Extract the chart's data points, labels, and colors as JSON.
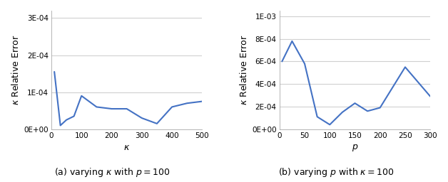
{
  "plot1": {
    "x": [
      10,
      30,
      50,
      75,
      100,
      150,
      200,
      250,
      300,
      350,
      400,
      450,
      500
    ],
    "y": [
      0.000155,
      1e-05,
      2.5e-05,
      3.5e-05,
      9e-05,
      6e-05,
      5.5e-05,
      5.5e-05,
      3e-05,
      1.5e-05,
      6e-05,
      7e-05,
      7.5e-05
    ],
    "xlabel": "$\\kappa$",
    "ylabel": "$\\kappa$ Relative Error",
    "xlim": [
      0,
      500
    ],
    "ylim": [
      0,
      0.00032
    ],
    "yticks": [
      0,
      0.0001,
      0.0002,
      0.0003
    ],
    "ytick_labels": [
      "0E+00",
      "1E-04",
      "2E-04",
      "3E-04"
    ],
    "xticks": [
      0,
      100,
      200,
      300,
      400,
      500
    ],
    "xtick_labels": [
      "0",
      "100",
      "200",
      "300",
      "400",
      "500"
    ],
    "caption": "(a) varying $\\kappa$ with $p = 100$"
  },
  "plot2": {
    "x": [
      5,
      25,
      50,
      75,
      100,
      125,
      150,
      175,
      200,
      250,
      300
    ],
    "y": [
      0.0006,
      0.00078,
      0.00058,
      0.00011,
      4e-05,
      0.00015,
      0.00023,
      0.00016,
      0.00019,
      0.00055,
      0.00029
    ],
    "xlabel": "$p$",
    "ylabel": "$\\kappa$ Relative Error",
    "xlim": [
      0,
      300
    ],
    "ylim": [
      0,
      0.00105
    ],
    "yticks": [
      0,
      0.0002,
      0.0004,
      0.0006,
      0.0008,
      0.001
    ],
    "ytick_labels": [
      "0E+00",
      "2E-04",
      "4E-04",
      "6E-04",
      "8E-04",
      "1E-03"
    ],
    "xticks": [
      0,
      50,
      100,
      150,
      200,
      250,
      300
    ],
    "xtick_labels": [
      "0",
      "50",
      "100",
      "150",
      "200",
      "250",
      "300"
    ],
    "caption": "(b) varying $p$ with $\\kappa = 100$"
  },
  "line_color": "#4472C4",
  "line_width": 1.5,
  "bg_color": "#ffffff",
  "grid_color": "#d0d0d0",
  "tick_fontsize": 7.5,
  "label_fontsize": 9,
  "caption_fontsize": 9
}
